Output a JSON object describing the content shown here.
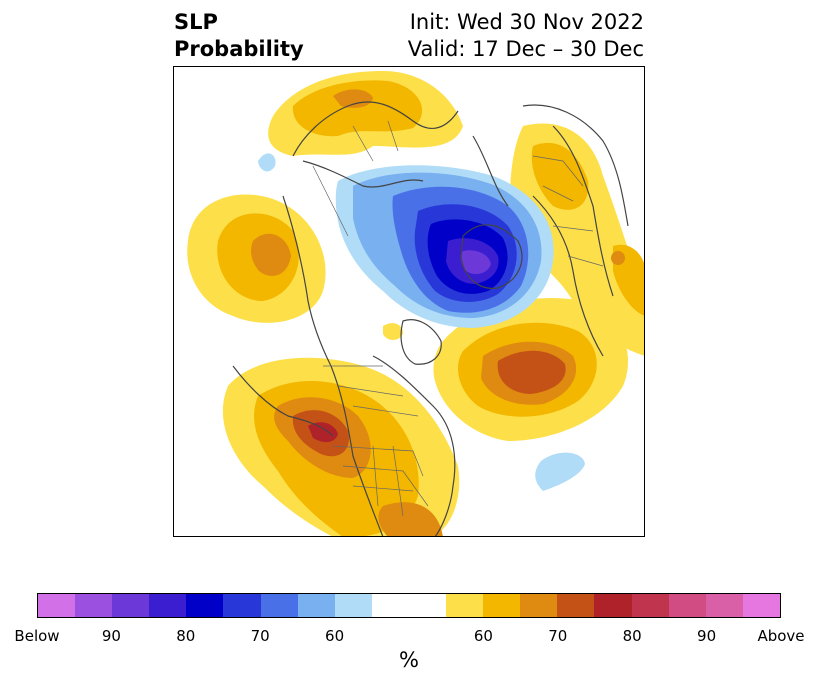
{
  "header": {
    "title_line1": "SLP",
    "title_line2": "Probability",
    "init_line": "Init: Wed 30 Nov 2022",
    "valid_line": "Valid: 17 Dec – 30 Dec"
  },
  "map": {
    "projection": "north polar stereographic",
    "features": [
      {
        "label": "strong below-normal SLP",
        "region": "Arctic / Siberia side of pole",
        "category": "Below 80+"
      },
      {
        "label": "above-normal SLP",
        "region": "western North America / Pacific Northwest",
        "category": "Above 80+"
      },
      {
        "label": "above-normal SLP",
        "region": "North Pacific near Aleutians",
        "category": "Above 70"
      },
      {
        "label": "above-normal SLP",
        "region": "North Atlantic south of Greenland",
        "category": "Above 70"
      },
      {
        "label": "above-normal SLP",
        "region": "central Asia",
        "category": "Above 60"
      },
      {
        "label": "above-normal SLP",
        "region": "Europe / Scandinavia",
        "category": "Above 60"
      }
    ]
  },
  "colorbar": {
    "colors": [
      "#d270e8",
      "#9b50e0",
      "#6c38d8",
      "#3a1ed0",
      "#0000c8",
      "#2838d8",
      "#4a70e8",
      "#78b0f0",
      "#b0dcf8",
      "#ffffff",
      "#ffffff",
      "#fde049",
      "#f3b700",
      "#df8a10",
      "#c45216",
      "#b0222a",
      "#c0344e",
      "#d04c82",
      "#d960a6",
      "#e676e0"
    ],
    "ticks": [
      "Below",
      "90",
      "80",
      "70",
      "60",
      "60",
      "70",
      "80",
      "90",
      "Above"
    ],
    "unit": "%"
  }
}
